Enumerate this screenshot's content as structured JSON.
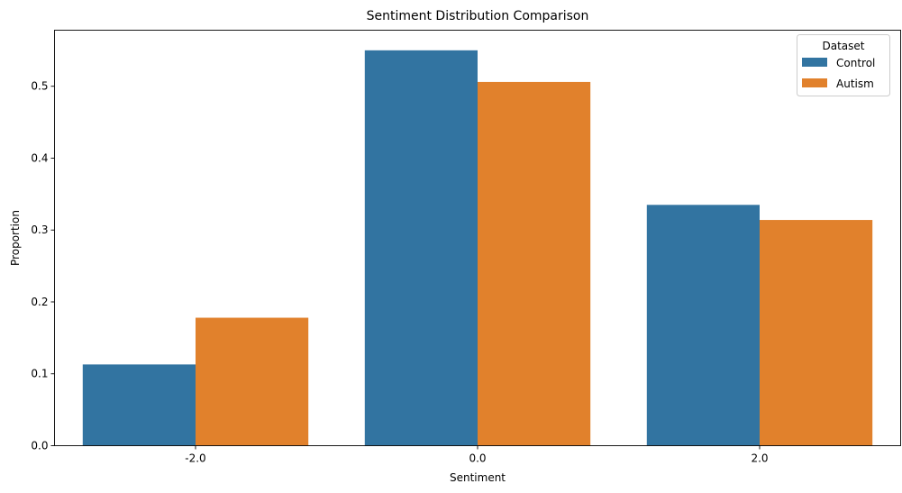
{
  "chart_data": {
    "type": "bar",
    "title": "Sentiment Distribution Comparison",
    "xlabel": "Sentiment",
    "ylabel": "Proportion",
    "categories": [
      "-2.0",
      "0.0",
      "2.0"
    ],
    "series": [
      {
        "name": "Control",
        "color": "#3274a1",
        "values": [
          0.113,
          0.55,
          0.335
        ]
      },
      {
        "name": "Autism",
        "color": "#e1812c",
        "values": [
          0.178,
          0.506,
          0.314
        ]
      }
    ],
    "ylim": [
      0,
      0.578
    ],
    "yticks": [
      0.0,
      0.1,
      0.2,
      0.3,
      0.4,
      0.5
    ],
    "ytick_labels": [
      "0.0",
      "0.1",
      "0.2",
      "0.3",
      "0.4",
      "0.5"
    ],
    "legend": {
      "title": "Dataset",
      "placement": "top-right"
    },
    "grid": false
  }
}
